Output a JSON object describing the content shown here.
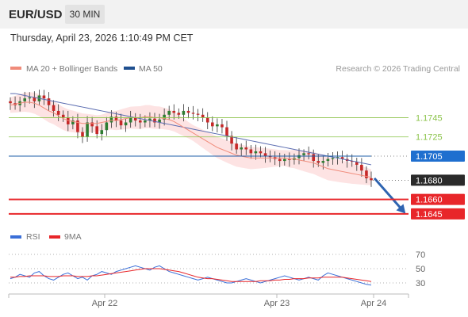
{
  "header": {
    "symbol": "EUR/USD",
    "timeframe": "30 MIN"
  },
  "timestamp": "Thursday, April 23, 2026 1:10:49 PM CET",
  "copyright": "Research © 2026 Trading Central",
  "colors": {
    "candle_up": "#2e7d32",
    "candle_down": "#c62828",
    "bollinger_fill": "#fde3e3",
    "ma20": "#f08b7a",
    "ma50": "#5a6bb0",
    "support_resistance": "#8bc34a",
    "pivot": "#1f5fa8",
    "target": "#e8262a",
    "rsi": "#3a6fd8",
    "rsi_ma": "#e8262a",
    "arrow": "#2e64b1",
    "last_price": "#2a2a2a"
  },
  "chart_data": [
    {
      "type": "candlestick",
      "legend": [
        "MA 20 + Bollinger Bands",
        "MA 50"
      ],
      "x_ticks": [
        "Apr 22",
        "Apr 23",
        "Apr 24"
      ],
      "ylim": [
        1.1635,
        1.1775
      ],
      "levels": [
        {
          "value": 1.1745,
          "label": "1.1745",
          "kind": "resistance"
        },
        {
          "value": 1.1725,
          "label": "1.1725",
          "kind": "resistance"
        },
        {
          "value": 1.1705,
          "label": "1.1705",
          "kind": "pivot"
        },
        {
          "value": 1.168,
          "label": "1.1680",
          "kind": "last"
        },
        {
          "value": 1.166,
          "label": "1.1660",
          "kind": "target"
        },
        {
          "value": 1.1645,
          "label": "1.1645",
          "kind": "target"
        }
      ],
      "forecast": {
        "from": 1.1682,
        "to": 1.1645,
        "direction": "down"
      },
      "closes": [
        1.176,
        1.1758,
        1.1762,
        1.1765,
        1.1766,
        1.1762,
        1.1768,
        1.1765,
        1.1758,
        1.1752,
        1.1748,
        1.1745,
        1.1738,
        1.1742,
        1.173,
        1.1725,
        1.174,
        1.1736,
        1.1728,
        1.1732,
        1.174,
        1.1746,
        1.1742,
        1.1737,
        1.174,
        1.1745,
        1.1742,
        1.174,
        1.1742,
        1.1744,
        1.174,
        1.1743,
        1.1748,
        1.1752,
        1.175,
        1.1748,
        1.1752,
        1.175,
        1.1749,
        1.1748,
        1.1745,
        1.174,
        1.1736,
        1.1738,
        1.1735,
        1.1726,
        1.1718,
        1.1712,
        1.1714,
        1.1712,
        1.1708,
        1.171,
        1.1708,
        1.1705,
        1.1704,
        1.1702,
        1.17,
        1.1702,
        1.1701,
        1.1703,
        1.1706,
        1.1708,
        1.1707,
        1.17,
        1.1698,
        1.17,
        1.1702,
        1.1703,
        1.1704,
        1.1702,
        1.17,
        1.1699,
        1.1696,
        1.169,
        1.1682,
        1.168
      ],
      "ma20": [
        1.1758,
        1.1759,
        1.176,
        1.1761,
        1.1761,
        1.176,
        1.1758,
        1.1755,
        1.1752,
        1.175,
        1.1747,
        1.1744,
        1.1742,
        1.1741,
        1.174,
        1.1739,
        1.1739,
        1.1739,
        1.1739,
        1.174,
        1.1741,
        1.1742,
        1.1742,
        1.1743,
        1.1744,
        1.1745,
        1.1745,
        1.1745,
        1.1746,
        1.1746,
        1.1745,
        1.1745,
        1.1744,
        1.1743,
        1.1741,
        1.1738,
        1.1735,
        1.1732,
        1.1729,
        1.1726,
        1.1723,
        1.172,
        1.1717,
        1.1714,
        1.1712,
        1.171,
        1.1708,
        1.1706,
        1.1705,
        1.1704,
        1.1703,
        1.1703,
        1.1703,
        1.1703,
        1.1703,
        1.1703,
        1.1703,
        1.1703,
        1.1702,
        1.1702,
        1.1701,
        1.17,
        1.1699,
        1.1698,
        1.1696,
        1.1694,
        1.1692,
        1.1691,
        1.169,
        1.1689,
        1.1688,
        1.1687,
        1.1686,
        1.1685,
        1.1684,
        1.1683
      ],
      "ma50": [
        1.177,
        1.177,
        1.1769,
        1.1768,
        1.1767,
        1.1766,
        1.1765,
        1.1764,
        1.1763,
        1.1762,
        1.1761,
        1.176,
        1.1759,
        1.1758,
        1.1757,
        1.1756,
        1.1755,
        1.1754,
        1.1753,
        1.1752,
        1.1751,
        1.175,
        1.1749,
        1.1748,
        1.1747,
        1.1746,
        1.1745,
        1.1744,
        1.1743,
        1.1742,
        1.1741,
        1.174,
        1.1739,
        1.1738,
        1.1737,
        1.1736,
        1.1735,
        1.1734,
        1.1733,
        1.1732,
        1.1731,
        1.173,
        1.1729,
        1.1728,
        1.1727,
        1.1726,
        1.1725,
        1.1724,
        1.1723,
        1.1722,
        1.1721,
        1.172,
        1.1719,
        1.1718,
        1.1717,
        1.1716,
        1.1715,
        1.1714,
        1.1713,
        1.1712,
        1.1711,
        1.171,
        1.1709,
        1.1708,
        1.1707,
        1.1706,
        1.1705,
        1.1704,
        1.1703,
        1.1702,
        1.1701,
        1.17,
        1.1699,
        1.1698,
        1.1697,
        1.1696
      ]
    },
    {
      "type": "line",
      "legend": [
        "RSI",
        "9MA"
      ],
      "ylim": [
        20,
        80
      ],
      "y_ticks": [
        "70",
        "50",
        "30"
      ],
      "rsi": [
        36,
        38,
        42,
        40,
        38,
        44,
        46,
        40,
        36,
        34,
        38,
        42,
        44,
        40,
        36,
        38,
        34,
        40,
        42,
        46,
        44,
        42,
        46,
        48,
        50,
        52,
        54,
        52,
        50,
        48,
        52,
        54,
        50,
        46,
        44,
        42,
        40,
        38,
        36,
        34,
        36,
        38,
        36,
        34,
        32,
        30,
        30,
        32,
        34,
        36,
        34,
        32,
        30,
        32,
        34,
        36,
        38,
        40,
        38,
        36,
        34,
        36,
        38,
        36,
        34,
        40,
        44,
        42,
        40,
        38,
        36,
        34,
        32,
        30,
        28,
        27
      ],
      "ma9": [
        38,
        38,
        39,
        39,
        40,
        40,
        40,
        40,
        39,
        39,
        39,
        40,
        40,
        40,
        39,
        39,
        39,
        40,
        40,
        41,
        42,
        43,
        44,
        45,
        46,
        47,
        48,
        49,
        50,
        50,
        50,
        50,
        49,
        48,
        47,
        46,
        44,
        42,
        40,
        38,
        37,
        36,
        36,
        35,
        34,
        33,
        32,
        32,
        32,
        32,
        32,
        32,
        33,
        33,
        33,
        34,
        34,
        35,
        35,
        36,
        36,
        36,
        37,
        37,
        37,
        38,
        38,
        38,
        38,
        38,
        37,
        36,
        35,
        34,
        33,
        32
      ]
    }
  ]
}
